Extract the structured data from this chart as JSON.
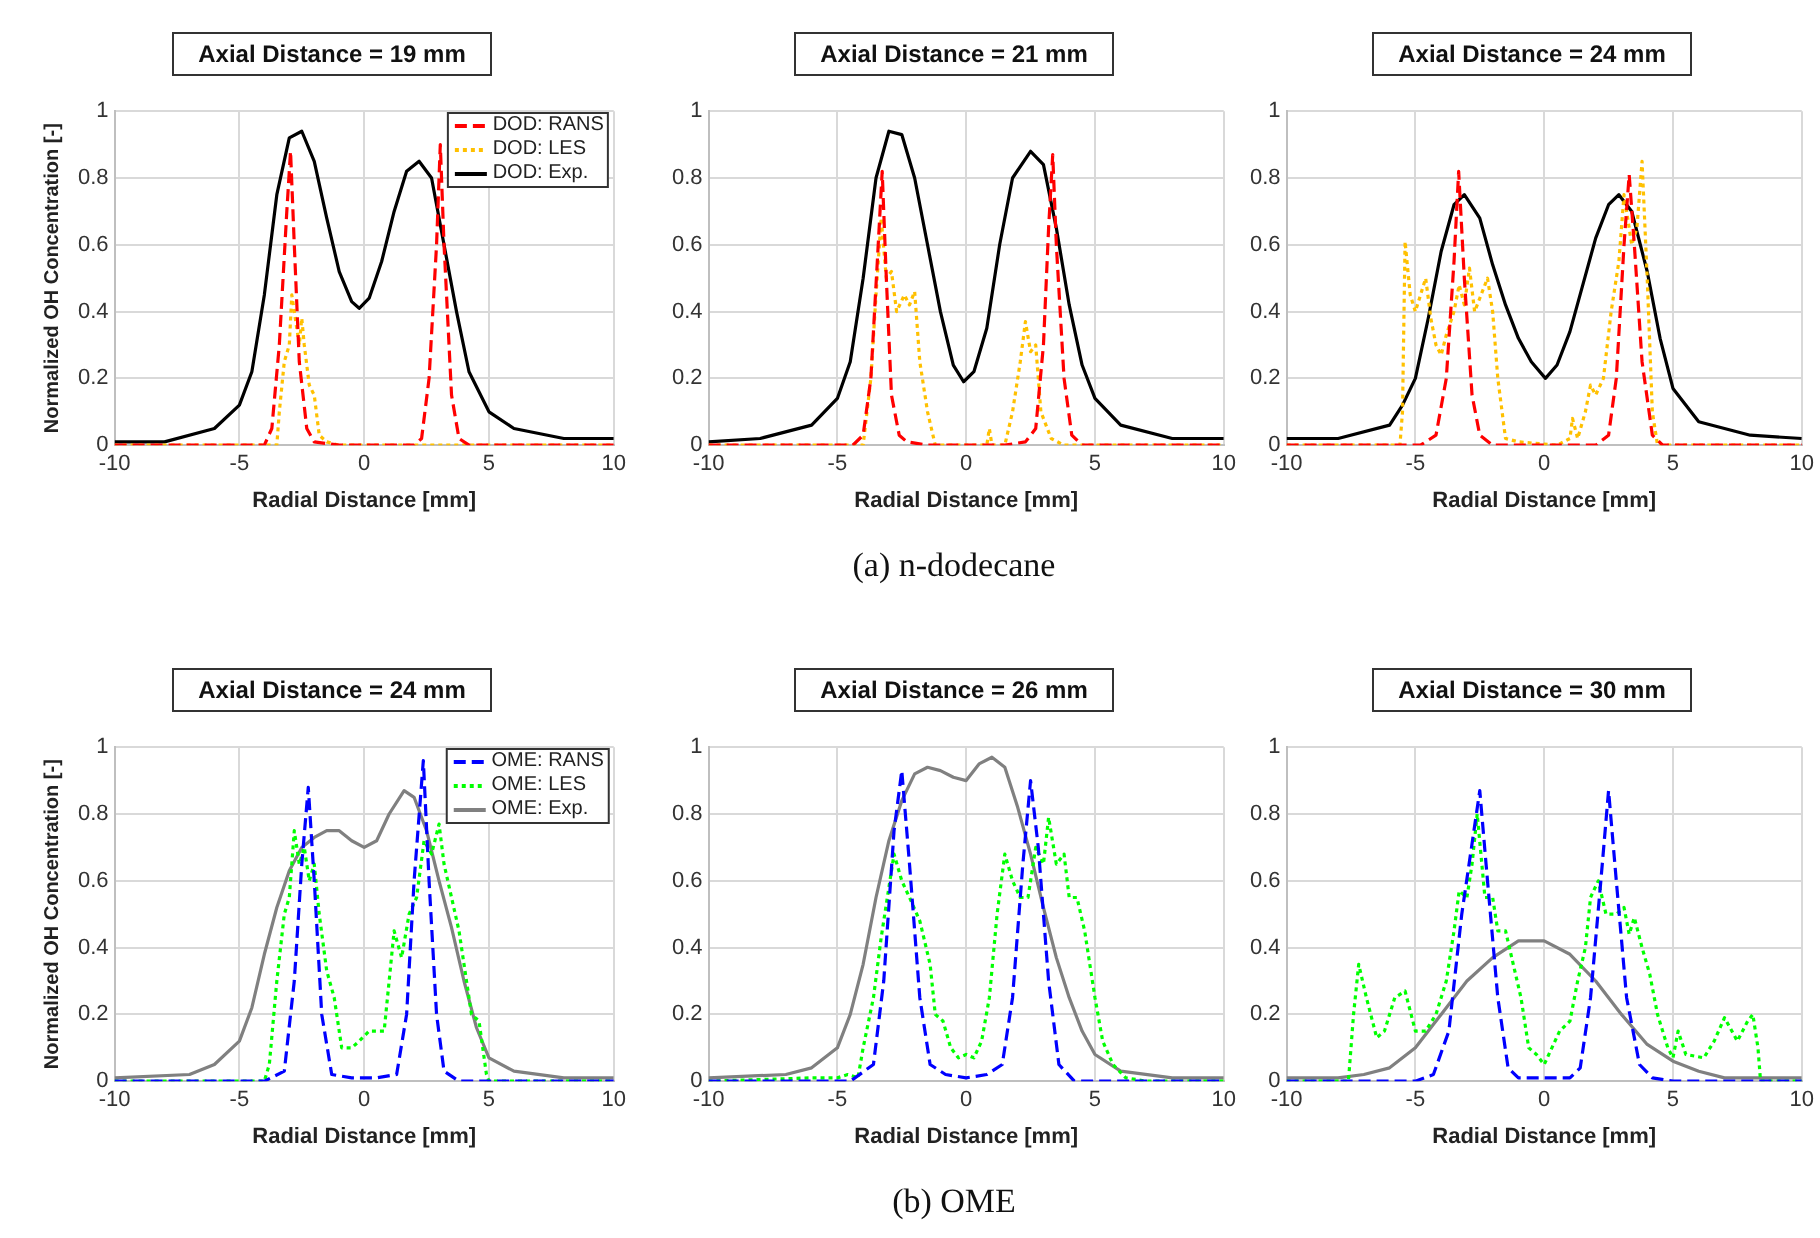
{
  "chart_data": [
    {
      "type": "line",
      "title": "Axial Distance = 19 mm",
      "xlabel": "Radial Distance [mm]",
      "ylabel": "Normalized OH Concentration [-]",
      "xlim": [
        -10,
        10
      ],
      "xticks": [
        -10,
        -5,
        0,
        5,
        10
      ],
      "ylim": [
        0,
        1
      ],
      "yticks": [
        0,
        0.2,
        0.4,
        0.6,
        0.8,
        1
      ],
      "grid": true,
      "legend": "top right",
      "marker": "none",
      "series": [
        {
          "name": "DOD: RANS",
          "color": "#ff0000",
          "line_style": "dashed",
          "x": [
            -10,
            -4,
            -3.7,
            -3.4,
            -3.1,
            -2.95,
            -2.8,
            -2.6,
            -2.3,
            -2,
            -1,
            1,
            2,
            2.3,
            2.6,
            2.9,
            3.05,
            3.2,
            3.5,
            3.8,
            4.2,
            10
          ],
          "values": [
            0,
            0,
            0.05,
            0.3,
            0.7,
            0.88,
            0.6,
            0.25,
            0.05,
            0.01,
            0,
            0,
            0,
            0.02,
            0.2,
            0.6,
            0.9,
            0.6,
            0.15,
            0.02,
            0,
            0
          ]
        },
        {
          "name": "DOD: LES",
          "color": "#ffc000",
          "line_style": "dotted",
          "x": [
            -10,
            -3.5,
            -3.4,
            -3.2,
            -3,
            -2.9,
            -2.8,
            -2.6,
            -2.5,
            -2.4,
            -2.2,
            -2,
            -1.8,
            -1.5,
            -1,
            10
          ],
          "values": [
            0,
            0,
            0.1,
            0.25,
            0.3,
            0.45,
            0.4,
            0.3,
            0.38,
            0.3,
            0.18,
            0.15,
            0.03,
            0.01,
            0,
            0
          ]
        },
        {
          "name": "DOD: Exp.",
          "color": "#000000",
          "line_style": "solid",
          "x": [
            -10,
            -8,
            -6,
            -5,
            -4.5,
            -4,
            -3.5,
            -3,
            -2.5,
            -2,
            -1.5,
            -1,
            -0.5,
            -0.2,
            0.2,
            0.7,
            1.2,
            1.7,
            2.2,
            2.7,
            3.2,
            3.7,
            4.2,
            5,
            6,
            8,
            10
          ],
          "values": [
            0.01,
            0.01,
            0.05,
            0.12,
            0.22,
            0.45,
            0.75,
            0.92,
            0.94,
            0.85,
            0.68,
            0.52,
            0.43,
            0.41,
            0.44,
            0.55,
            0.7,
            0.82,
            0.85,
            0.8,
            0.6,
            0.4,
            0.22,
            0.1,
            0.05,
            0.02,
            0.02
          ]
        }
      ]
    },
    {
      "type": "line",
      "title": "Axial Distance = 21 mm",
      "xlabel": "Radial Distance [mm]",
      "xlim": [
        -10,
        10
      ],
      "xticks": [
        -10,
        -5,
        0,
        5,
        10
      ],
      "ylim": [
        0,
        1
      ],
      "yticks": [
        0,
        0.2,
        0.4,
        0.6,
        0.8,
        1
      ],
      "grid": true,
      "marker": "none",
      "annotations": [
        "(a) n-dodecane"
      ],
      "series": [
        {
          "color": "#ff0000",
          "line_style": "dashed",
          "x": [
            -10,
            -4.4,
            -4,
            -3.7,
            -3.45,
            -3.26,
            -3.1,
            -2.9,
            -2.6,
            -2.3,
            -1.5,
            1.5,
            2.3,
            2.7,
            3,
            3.2,
            3.36,
            3.5,
            3.8,
            4.1,
            4.5,
            10
          ],
          "values": [
            0,
            0,
            0.03,
            0.2,
            0.55,
            0.82,
            0.5,
            0.15,
            0.03,
            0.01,
            0,
            0,
            0.01,
            0.05,
            0.3,
            0.65,
            0.87,
            0.6,
            0.2,
            0.03,
            0,
            0
          ]
        },
        {
          "color": "#ffc000",
          "line_style": "dotted",
          "x": [
            -10,
            -4,
            -3.7,
            -3.5,
            -3.3,
            -3.1,
            -2.9,
            -2.7,
            -2.4,
            -2.2,
            -2,
            -1.8,
            -1.5,
            -1.2,
            0.8,
            0.9,
            1,
            1.5,
            1.8,
            2.1,
            2.3,
            2.5,
            2.7,
            2.9,
            3.3,
            3.8,
            10
          ],
          "values": [
            0,
            0,
            0.2,
            0.45,
            0.68,
            0.5,
            0.52,
            0.4,
            0.45,
            0.42,
            0.46,
            0.25,
            0.1,
            0,
            0,
            0.05,
            0,
            0,
            0.1,
            0.25,
            0.37,
            0.28,
            0.3,
            0.1,
            0.02,
            0,
            0
          ]
        },
        {
          "color": "#000000",
          "line_style": "solid",
          "x": [
            -10,
            -8,
            -6,
            -5,
            -4.5,
            -4,
            -3.5,
            -3,
            -2.5,
            -2,
            -1.5,
            -1,
            -0.5,
            -0.1,
            0.3,
            0.8,
            1.3,
            1.8,
            2.5,
            3,
            3.5,
            4,
            4.5,
            5,
            6,
            8,
            10
          ],
          "values": [
            0.01,
            0.02,
            0.06,
            0.14,
            0.25,
            0.5,
            0.8,
            0.94,
            0.93,
            0.8,
            0.6,
            0.4,
            0.24,
            0.19,
            0.22,
            0.35,
            0.6,
            0.8,
            0.88,
            0.84,
            0.65,
            0.42,
            0.24,
            0.14,
            0.06,
            0.02,
            0.02
          ]
        }
      ]
    },
    {
      "type": "line",
      "title": "Axial Distance = 24 mm",
      "xlabel": "Radial Distance [mm]",
      "xlim": [
        -10,
        10
      ],
      "xticks": [
        -10,
        -5,
        0,
        5,
        10
      ],
      "ylim": [
        0,
        1
      ],
      "yticks": [
        0,
        0.2,
        0.4,
        0.6,
        0.8,
        1
      ],
      "grid": true,
      "marker": "none",
      "series": [
        {
          "color": "#ff0000",
          "line_style": "dashed",
          "x": [
            -10,
            -4.8,
            -4.2,
            -3.8,
            -3.5,
            -3.32,
            -3.1,
            -2.8,
            -2.5,
            -2,
            2,
            2.5,
            2.8,
            3.1,
            3.3,
            3.5,
            3.8,
            4.2,
            4.6,
            10
          ],
          "values": [
            0,
            0,
            0.03,
            0.2,
            0.55,
            0.82,
            0.5,
            0.15,
            0.03,
            0,
            0,
            0.03,
            0.2,
            0.6,
            0.81,
            0.6,
            0.25,
            0.03,
            0,
            0
          ]
        },
        {
          "color": "#ffc000",
          "line_style": "dotted",
          "x": [
            -10,
            -5.6,
            -5.5,
            -5.4,
            -5.2,
            -5,
            -4.8,
            -4.6,
            -4.4,
            -4.2,
            -4,
            -3.8,
            -3.5,
            -3.3,
            -3.1,
            -2.9,
            -2.7,
            -2.5,
            -2.2,
            -2,
            -1.8,
            -1.5,
            -1,
            0.5,
            1,
            1.1,
            1.3,
            1.6,
            1.8,
            2,
            2.3,
            2.6,
            2.9,
            3.1,
            3.4,
            3.6,
            3.8,
            4,
            4.2,
            4.4,
            10
          ],
          "values": [
            0,
            0,
            0.1,
            0.61,
            0.45,
            0.4,
            0.45,
            0.5,
            0.38,
            0.3,
            0.27,
            0.33,
            0.4,
            0.48,
            0.42,
            0.53,
            0.4,
            0.44,
            0.5,
            0.4,
            0.2,
            0.02,
            0.01,
            0,
            0.02,
            0.08,
            0.02,
            0.1,
            0.18,
            0.15,
            0.2,
            0.4,
            0.55,
            0.75,
            0.6,
            0.65,
            0.85,
            0.5,
            0.1,
            0,
            0
          ]
        },
        {
          "color": "#000000",
          "line_style": "solid",
          "x": [
            -10,
            -8,
            -6,
            -5.5,
            -5,
            -4.5,
            -4,
            -3.5,
            -3.1,
            -2.5,
            -2,
            -1.5,
            -1,
            -0.5,
            0.05,
            0.5,
            1,
            1.5,
            2,
            2.5,
            2.9,
            3.4,
            4,
            4.5,
            5,
            6,
            8,
            10
          ],
          "values": [
            0.02,
            0.02,
            0.06,
            0.12,
            0.2,
            0.38,
            0.58,
            0.72,
            0.75,
            0.68,
            0.54,
            0.42,
            0.32,
            0.25,
            0.2,
            0.24,
            0.34,
            0.48,
            0.62,
            0.72,
            0.75,
            0.7,
            0.52,
            0.32,
            0.17,
            0.07,
            0.03,
            0.02
          ]
        }
      ]
    },
    {
      "type": "line",
      "title": "Axial Distance = 24 mm",
      "xlabel": "Radial Distance [mm]",
      "ylabel": "Normalized OH Concentration [-]",
      "xlim": [
        -10,
        10
      ],
      "xticks": [
        -10,
        -5,
        0,
        5,
        10
      ],
      "ylim": [
        0,
        1
      ],
      "yticks": [
        0,
        0.2,
        0.4,
        0.6,
        0.8,
        1
      ],
      "grid": true,
      "legend": "top right",
      "marker": "none",
      "series": [
        {
          "name": "OME: RANS",
          "color": "#0000ff",
          "line_style": "dashed",
          "x": [
            -10,
            -4,
            -3.2,
            -2.8,
            -2.5,
            -2.24,
            -2,
            -1.7,
            -1.3,
            -0.5,
            0.5,
            1.3,
            1.7,
            2,
            2.37,
            2.6,
            2.9,
            3.2,
            3.8,
            10
          ],
          "values": [
            0,
            0,
            0.03,
            0.3,
            0.65,
            0.88,
            0.6,
            0.2,
            0.02,
            0.01,
            0.01,
            0.02,
            0.2,
            0.6,
            0.96,
            0.6,
            0.2,
            0.03,
            0,
            0
          ]
        },
        {
          "name": "OME: LES",
          "color": "#00ff00",
          "line_style": "dotted",
          "x": [
            -10,
            -4,
            -3.8,
            -3.5,
            -3.2,
            -3,
            -2.8,
            -2.6,
            -2.4,
            -2.2,
            -2,
            -1.8,
            -1.5,
            -1.2,
            -0.9,
            -0.5,
            -0.2,
            0.2,
            0.5,
            0.8,
            1,
            1.2,
            1.5,
            1.8,
            2.1,
            2.4,
            2.7,
            3,
            3.2,
            3.5,
            3.8,
            4,
            4.3,
            4.6,
            4.9,
            5,
            10
          ],
          "values": [
            0,
            0,
            0.05,
            0.3,
            0.5,
            0.55,
            0.75,
            0.65,
            0.7,
            0.6,
            0.65,
            0.5,
            0.33,
            0.25,
            0.1,
            0.1,
            0.12,
            0.15,
            0.15,
            0.15,
            0.3,
            0.45,
            0.37,
            0.5,
            0.55,
            0.72,
            0.68,
            0.77,
            0.65,
            0.55,
            0.45,
            0.35,
            0.2,
            0.18,
            0.02,
            0,
            0
          ]
        },
        {
          "name": "OME: Exp.",
          "color": "#808080",
          "line_style": "solid",
          "x": [
            -10,
            -7,
            -6,
            -5,
            -4.5,
            -4,
            -3.5,
            -3,
            -2.5,
            -2,
            -1.5,
            -1,
            -0.5,
            0,
            0.5,
            1,
            1.6,
            2,
            2.5,
            3,
            3.5,
            4,
            4.5,
            5,
            6,
            8,
            10
          ],
          "values": [
            0.01,
            0.02,
            0.05,
            0.12,
            0.22,
            0.38,
            0.52,
            0.63,
            0.7,
            0.73,
            0.75,
            0.75,
            0.72,
            0.7,
            0.72,
            0.8,
            0.87,
            0.85,
            0.75,
            0.6,
            0.46,
            0.3,
            0.16,
            0.07,
            0.03,
            0.01,
            0.01
          ]
        }
      ]
    },
    {
      "type": "line",
      "title": "Axial Distance = 26 mm",
      "xlabel": "Radial Distance [mm]",
      "xlim": [
        -10,
        10
      ],
      "xticks": [
        -10,
        -5,
        0,
        5,
        10
      ],
      "ylim": [
        0,
        1
      ],
      "yticks": [
        0,
        0.2,
        0.4,
        0.6,
        0.8,
        1
      ],
      "grid": true,
      "marker": "none",
      "annotations": [
        "(b) OME"
      ],
      "series": [
        {
          "color": "#0000ff",
          "line_style": "dashed",
          "x": [
            -10,
            -4.5,
            -3.6,
            -3.2,
            -2.8,
            -2.5,
            -2.2,
            -1.8,
            -1.4,
            -0.8,
            0,
            0.8,
            1.4,
            1.8,
            2.2,
            2.5,
            2.8,
            3.2,
            3.6,
            4.2,
            10
          ],
          "values": [
            0,
            0,
            0.05,
            0.3,
            0.75,
            0.93,
            0.65,
            0.25,
            0.05,
            0.02,
            0.01,
            0.02,
            0.05,
            0.25,
            0.65,
            0.9,
            0.7,
            0.3,
            0.05,
            0,
            0
          ]
        },
        {
          "color": "#00ff00",
          "line_style": "dotted",
          "x": [
            -10,
            -6,
            -5,
            -4.6,
            -4.2,
            -4,
            -3.6,
            -3.3,
            -3,
            -2.8,
            -2.5,
            -2.2,
            -1.8,
            -1.4,
            -1.2,
            -0.9,
            -0.6,
            -0.3,
            0,
            0.3,
            0.6,
            0.9,
            1.2,
            1.5,
            1.8,
            2.1,
            2.4,
            2.7,
            3,
            3.2,
            3.5,
            3.8,
            4,
            4.3,
            4.6,
            5,
            5.3,
            5.7,
            6.2,
            7,
            10
          ],
          "values": [
            0,
            0.01,
            0.01,
            0.02,
            0.01,
            0.1,
            0.25,
            0.43,
            0.58,
            0.68,
            0.6,
            0.55,
            0.48,
            0.35,
            0.2,
            0.18,
            0.1,
            0.07,
            0.08,
            0.07,
            0.12,
            0.25,
            0.5,
            0.68,
            0.6,
            0.55,
            0.55,
            0.7,
            0.65,
            0.79,
            0.65,
            0.68,
            0.55,
            0.55,
            0.45,
            0.25,
            0.12,
            0.05,
            0.01,
            0,
            0
          ]
        },
        {
          "color": "#808080",
          "line_style": "solid",
          "x": [
            -10,
            -7,
            -6,
            -5,
            -4.5,
            -4,
            -3.5,
            -3,
            -2.5,
            -2,
            -1.5,
            -1,
            -0.5,
            0,
            0.5,
            1,
            1.5,
            2,
            2.5,
            3,
            3.5,
            4,
            4.5,
            5,
            6,
            8,
            10
          ],
          "values": [
            0.01,
            0.02,
            0.04,
            0.1,
            0.2,
            0.35,
            0.55,
            0.72,
            0.84,
            0.92,
            0.94,
            0.93,
            0.91,
            0.9,
            0.95,
            0.97,
            0.94,
            0.82,
            0.68,
            0.52,
            0.37,
            0.25,
            0.15,
            0.08,
            0.03,
            0.01,
            0.01
          ]
        }
      ]
    },
    {
      "type": "line",
      "title": "Axial Distance = 30 mm",
      "xlabel": "Radial Distance [mm]",
      "xlim": [
        -10,
        10
      ],
      "xticks": [
        -10,
        -5,
        0,
        5,
        10
      ],
      "ylim": [
        0,
        1
      ],
      "yticks": [
        0,
        0.2,
        0.4,
        0.6,
        0.8,
        1
      ],
      "grid": true,
      "marker": "none",
      "series": [
        {
          "color": "#0000ff",
          "line_style": "dashed",
          "x": [
            -10,
            -5,
            -4.3,
            -3.7,
            -3.2,
            -2.5,
            -2.2,
            -1.8,
            -1.4,
            -1,
            1,
            1.4,
            1.8,
            2.2,
            2.5,
            2.8,
            3.2,
            3.7,
            4.2,
            5,
            10
          ],
          "values": [
            0,
            0,
            0.02,
            0.15,
            0.5,
            0.87,
            0.6,
            0.25,
            0.04,
            0.01,
            0.01,
            0.04,
            0.25,
            0.6,
            0.87,
            0.6,
            0.25,
            0.05,
            0.01,
            0,
            0
          ]
        },
        {
          "color": "#00ff00",
          "line_style": "dotted",
          "x": [
            -10,
            -7.6,
            -7.4,
            -7.2,
            -6.9,
            -6.5,
            -6.2,
            -5.8,
            -5.4,
            -5,
            -4.6,
            -4.2,
            -3.8,
            -3.5,
            -3.3,
            -3,
            -2.8,
            -2.6,
            -2.3,
            -2,
            -1.8,
            -1.5,
            -1.2,
            -0.9,
            -0.6,
            -0.3,
            0,
            0.3,
            0.6,
            1,
            1.3,
            1.6,
            1.8,
            2.1,
            2.4,
            2.8,
            3.1,
            3.3,
            3.5,
            3.8,
            4.1,
            4.4,
            4.8,
            5,
            5.2,
            5.5,
            6.2,
            6.6,
            7,
            7.5,
            7.9,
            8.1,
            8.3,
            8.4,
            10
          ],
          "values": [
            0,
            0,
            0.2,
            0.35,
            0.25,
            0.13,
            0.15,
            0.25,
            0.27,
            0.15,
            0.15,
            0.2,
            0.3,
            0.45,
            0.57,
            0.55,
            0.65,
            0.8,
            0.55,
            0.55,
            0.45,
            0.45,
            0.35,
            0.25,
            0.1,
            0.08,
            0.05,
            0.1,
            0.15,
            0.18,
            0.3,
            0.4,
            0.55,
            0.6,
            0.5,
            0.5,
            0.52,
            0.44,
            0.49,
            0.4,
            0.32,
            0.2,
            0.1,
            0.07,
            0.15,
            0.08,
            0.07,
            0.12,
            0.19,
            0.12,
            0.18,
            0.2,
            0.1,
            0,
            0
          ]
        },
        {
          "color": "#808080",
          "line_style": "solid",
          "x": [
            -10,
            -8,
            -7,
            -6,
            -5,
            -4,
            -3,
            -2,
            -1,
            0,
            1,
            2,
            3,
            4,
            5,
            6,
            7,
            8,
            10
          ],
          "values": [
            0.01,
            0.01,
            0.02,
            0.04,
            0.1,
            0.2,
            0.3,
            0.37,
            0.42,
            0.42,
            0.38,
            0.3,
            0.2,
            0.11,
            0.06,
            0.03,
            0.01,
            0.01,
            0.01
          ]
        }
      ]
    }
  ]
}
